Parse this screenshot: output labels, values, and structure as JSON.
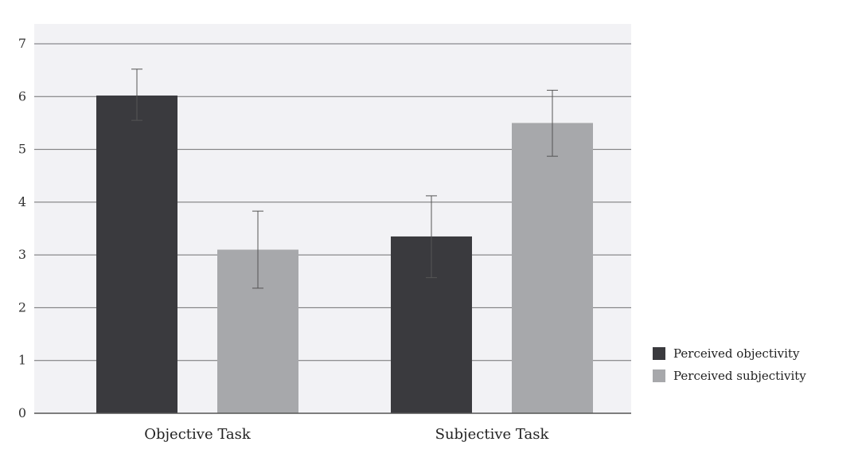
{
  "chart_data": {
    "type": "bar",
    "categories": [
      "Objective Task",
      "Subjective Task"
    ],
    "series": [
      {
        "name": "Perceived objectivity",
        "values": [
          6.02,
          3.35
        ],
        "error_low": [
          5.55,
          2.57
        ],
        "error_high": [
          6.52,
          4.12
        ],
        "color": "#3a3a3e"
      },
      {
        "name": "Perceived subjectivity",
        "values": [
          3.1,
          5.5
        ],
        "error_low": [
          2.37,
          4.87
        ],
        "error_high": [
          3.83,
          6.12
        ],
        "color": "#a7a8ab"
      }
    ],
    "ylim": [
      0,
      7
    ],
    "yticks": [
      "0",
      "1",
      "2",
      "3",
      "4",
      "5",
      "6",
      "7"
    ],
    "title": "",
    "xlabel": "",
    "ylabel": "",
    "grid": true,
    "legend_position": "right",
    "plot_background": "#f2f2f5"
  }
}
